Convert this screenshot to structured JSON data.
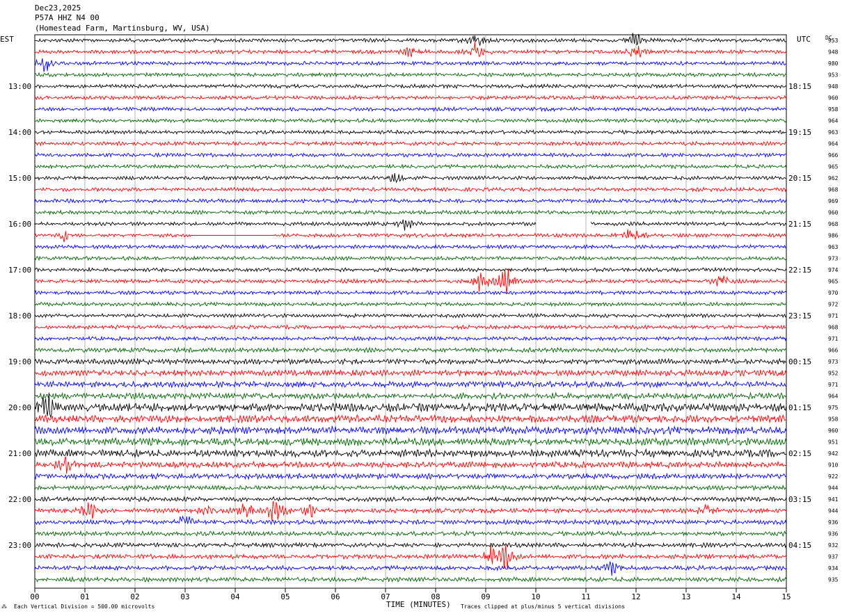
{
  "header": {
    "date": "Dec23,2025",
    "station": "P57A HHZ N4 00",
    "location": "(Homestead Farm, Martinsburg, WV, USA)"
  },
  "left_tz": "EST",
  "right_tz": "UTC",
  "dc_label": "DC",
  "footer": {
    "scale": "Each Vertical Division =  500.00 microvolts",
    "clip": "Traces clipped at plus/minus 5 vertical divisions",
    "xlabel": "TIME (MINUTES)"
  },
  "colors": {
    "cycle": [
      "#000000",
      "#ff0000",
      "#0000ff",
      "#006400"
    ],
    "grid": "#808080"
  },
  "chart_data": {
    "type": "line",
    "xlabel": "TIME (MINUTES)",
    "xlim": [
      0,
      15
    ],
    "x_ticks": [
      "00",
      "01",
      "02",
      "03",
      "04",
      "05",
      "06",
      "07",
      "08",
      "09",
      "10",
      "11",
      "12",
      "13",
      "14",
      "15"
    ],
    "trace_count": 48,
    "left_labels": [
      "13:00",
      "14:00",
      "15:00",
      "16:00",
      "17:00",
      "18:00",
      "19:00",
      "20:00",
      "21:00",
      "22:00",
      "23:00"
    ],
    "right_labels": [
      "18:15",
      "19:15",
      "20:15",
      "21:15",
      "22:15",
      "23:15",
      "00:15",
      "01:15",
      "02:15",
      "03:15",
      "04:15"
    ],
    "label_every_traces": 4,
    "first_labeled_trace": 4,
    "dc_offsets": [
      "953",
      "948",
      "980",
      "953",
      "948",
      "960",
      "958",
      "964",
      "963",
      "964",
      "966",
      "965",
      "962",
      "968",
      "969",
      "960",
      "968",
      "986",
      "963",
      "973",
      "974",
      "965",
      "970",
      "972",
      "971",
      "968",
      "971",
      "966",
      "973",
      "952",
      "971",
      "964",
      "975",
      "958",
      "960",
      "951",
      "942",
      "910",
      "922",
      "944",
      "941",
      "944",
      "936",
      "936",
      "932",
      "937",
      "934",
      "935"
    ],
    "activity": [
      1,
      1,
      1,
      1,
      1,
      1,
      1,
      1,
      1,
      1,
      1,
      1,
      1,
      1,
      1,
      1,
      1,
      1,
      1,
      1,
      1,
      1,
      1,
      1,
      1,
      1,
      1,
      1.2,
      1.4,
      1.6,
      1.6,
      1.6,
      2.2,
      2.0,
      2.0,
      2.0,
      2.0,
      1.6,
      1.4,
      1.2,
      1.2,
      1.2,
      1.2,
      1.2,
      1.2,
      1.2,
      1.2,
      1.2
    ],
    "events": [
      {
        "trace": 0,
        "minute": 8.8,
        "amp": 3
      },
      {
        "trace": 0,
        "minute": 12.0,
        "amp": 3
      },
      {
        "trace": 1,
        "minute": 8.8,
        "amp": 3
      },
      {
        "trace": 1,
        "minute": 7.5,
        "amp": 2
      },
      {
        "trace": 1,
        "minute": 12.0,
        "amp": 2.5
      },
      {
        "trace": 2,
        "minute": 0.25,
        "amp": 4
      },
      {
        "trace": 12,
        "minute": 7.2,
        "amp": 1.8
      },
      {
        "trace": 16,
        "minute": 7.4,
        "amp": 2
      },
      {
        "trace": 17,
        "minute": 0.6,
        "amp": 2
      },
      {
        "trace": 17,
        "minute": 11.9,
        "amp": 2.5
      },
      {
        "trace": 21,
        "minute": 8.9,
        "amp": 4
      },
      {
        "trace": 21,
        "minute": 9.4,
        "amp": 5
      },
      {
        "trace": 21,
        "minute": 13.7,
        "amp": 2.5
      },
      {
        "trace": 32,
        "minute": 0.25,
        "amp": 5
      },
      {
        "trace": 37,
        "minute": 0.6,
        "amp": 3.5
      },
      {
        "trace": 41,
        "minute": 1.1,
        "amp": 3
      },
      {
        "trace": 41,
        "minute": 3.5,
        "amp": 3
      },
      {
        "trace": 41,
        "minute": 4.2,
        "amp": 3.5
      },
      {
        "trace": 41,
        "minute": 4.8,
        "amp": 5
      },
      {
        "trace": 41,
        "minute": 5.5,
        "amp": 2
      },
      {
        "trace": 41,
        "minute": 13.4,
        "amp": 2
      },
      {
        "trace": 42,
        "minute": 3.0,
        "amp": 2.5
      },
      {
        "trace": 45,
        "minute": 9.1,
        "amp": 3
      },
      {
        "trace": 45,
        "minute": 9.4,
        "amp": 4
      },
      {
        "trace": 46,
        "minute": 11.5,
        "amp": 2
      }
    ],
    "gap": {
      "trace": 16,
      "start_minute": 10.0,
      "end_minute": 11.1
    },
    "flat": {
      "trace": 17,
      "start_minute": 3.1,
      "end_minute": 4.8
    }
  }
}
